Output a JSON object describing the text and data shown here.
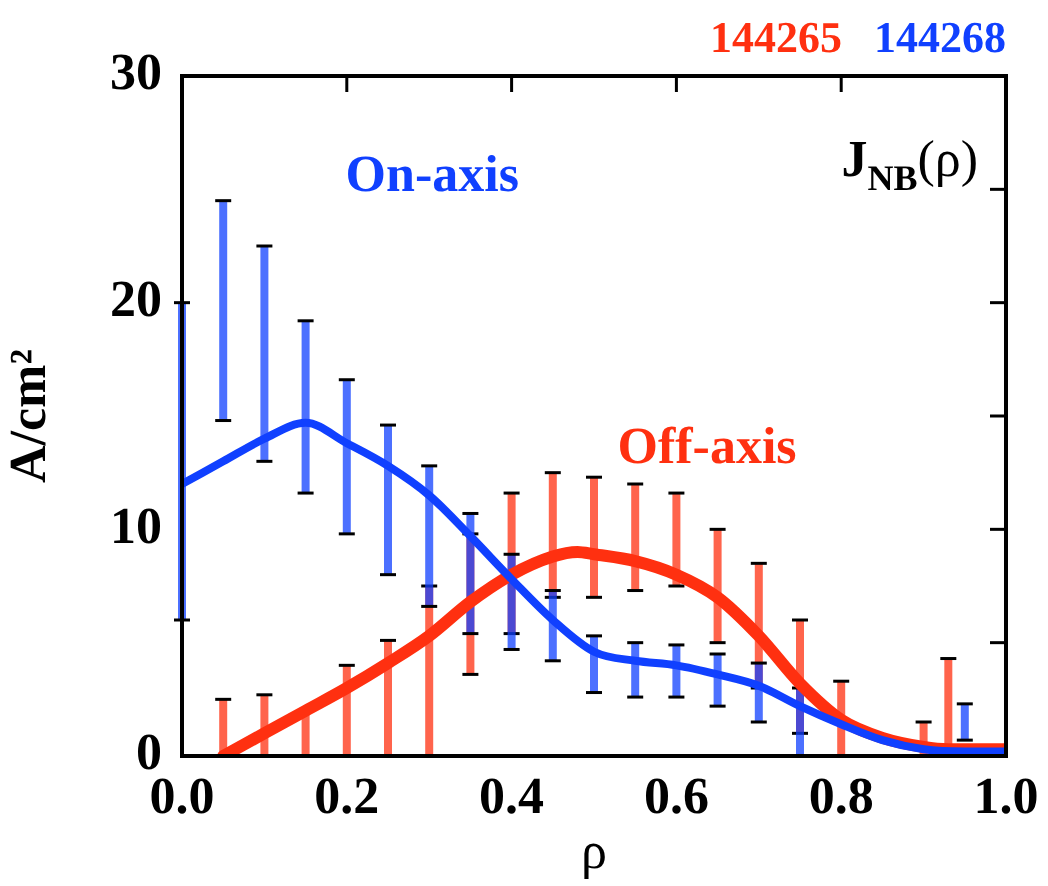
{
  "chart_data": {
    "type": "line",
    "title": "J$_{NB}$(ρ)",
    "xlabel": "ρ",
    "ylabel": "A/cm²",
    "annotations": [
      "144265",
      "144268"
    ],
    "xlim": [
      0,
      1
    ],
    "xticks": [
      {
        "value": 0,
        "label": "0.0"
      },
      0.2,
      0.4,
      0.6,
      0.8,
      {
        "value": 1,
        "label": "1.0"
      }
    ],
    "ylim": [
      0,
      30
    ],
    "yticks": [
      0,
      {
        "value": 5,
        "label": null
      },
      10,
      {
        "value": 15,
        "label": null
      },
      20,
      {
        "value": 25,
        "label": null
      },
      30
    ],
    "grid": false,
    "legend": false,
    "marker": "none",
    "line_style": "solid",
    "series": [
      {
        "name": "Off-axis",
        "color": "#ff3010",
        "x": [
          0.05,
          0.1,
          0.15,
          0.2,
          0.25,
          0.3,
          0.35,
          0.4,
          0.45,
          0.48,
          0.5,
          0.55,
          0.6,
          0.65,
          0.7,
          0.75,
          0.8,
          0.85,
          0.9,
          0.93,
          1.0
        ],
        "values": [
          0,
          1,
          2,
          3,
          4.1,
          5.3,
          6.8,
          8,
          8.8,
          9,
          8.9,
          8.6,
          8,
          7,
          5.3,
          3.2,
          1.6,
          0.8,
          0.4,
          0.3,
          0.3
        ],
        "errors": [
          [
            0,
            2.5
          ],
          [
            0,
            2.7
          ],
          [
            0,
            2
          ],
          [
            0,
            4
          ],
          [
            0,
            5.1
          ],
          [
            0,
            7.5
          ],
          [
            3.6,
            9.8
          ],
          [
            5.4,
            11.6
          ],
          [
            7,
            12.5
          ],
          null,
          [
            7,
            12.3
          ],
          [
            7.3,
            12
          ],
          [
            7.5,
            11.6
          ],
          [
            5,
            10
          ],
          [
            3,
            8.5
          ],
          [
            1,
            6
          ],
          [
            0,
            3.3
          ],
          null,
          [
            0,
            1.5
          ],
          [
            0,
            4.3
          ],
          null
        ]
      },
      {
        "name": "On-axis",
        "color": "#1040ff",
        "x": [
          0,
          0.05,
          0.1,
          0.15,
          0.2,
          0.25,
          0.3,
          0.35,
          0.4,
          0.45,
          0.5,
          0.55,
          0.6,
          0.65,
          0.7,
          0.75,
          0.8,
          0.85,
          0.9,
          0.95,
          1.0
        ],
        "values": [
          12,
          13,
          14,
          14.7,
          13.8,
          12.8,
          11.5,
          9.7,
          7.8,
          6,
          4.6,
          4.2,
          4,
          3.6,
          3.1,
          2.2,
          1.4,
          0.7,
          0.3,
          0.2,
          0.2
        ],
        "errors": [
          [
            6,
            20
          ],
          [
            14.8,
            24.5
          ],
          [
            13,
            22.5
          ],
          [
            11.6,
            19.2
          ],
          [
            9.8,
            16.6
          ],
          [
            8,
            14.6
          ],
          [
            6.6,
            12.8
          ],
          [
            5.4,
            10.7
          ],
          [
            4.7,
            8.9
          ],
          [
            4.2,
            7.3
          ],
          [
            2.8,
            5.3
          ],
          [
            2.6,
            5
          ],
          [
            2.6,
            4.9
          ],
          [
            2.2,
            4.5
          ],
          [
            1.5,
            4.1
          ],
          [
            0,
            3
          ],
          null,
          null,
          null,
          [
            0.7,
            2.3
          ],
          null
        ]
      }
    ]
  }
}
